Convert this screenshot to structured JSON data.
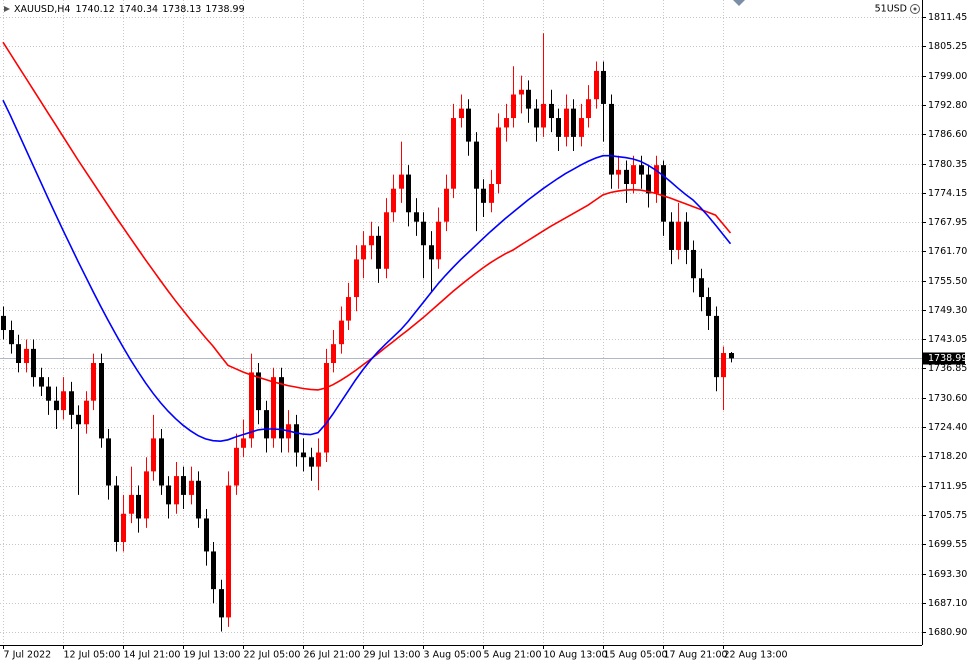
{
  "chart_data": {
    "type": "candlestick",
    "symbol": "XAUUSD,H4",
    "account_label": "51USD",
    "categories": [
      "7 Jul 2022",
      null,
      null,
      null,
      null,
      null,
      null,
      null,
      "12 Jul 05:00",
      null,
      null,
      null,
      null,
      null,
      null,
      null,
      "14 Jul 21:00",
      null,
      null,
      null,
      null,
      null,
      null,
      null,
      "19 Jul 13:00",
      null,
      null,
      null,
      null,
      null,
      null,
      null,
      "22 Jul 05:00",
      null,
      null,
      null,
      null,
      null,
      null,
      null,
      "26 Jul 21:00",
      null,
      null,
      null,
      null,
      null,
      null,
      null,
      "29 Jul 13:00",
      null,
      null,
      null,
      null,
      null,
      null,
      null,
      "3 Aug 05:00",
      null,
      null,
      null,
      null,
      null,
      null,
      null,
      "5 Aug 21:00",
      null,
      null,
      null,
      null,
      null,
      null,
      null,
      "10 Aug 13:00",
      null,
      null,
      null,
      null,
      null,
      null,
      null,
      "15 Aug 05:00",
      null,
      null,
      null,
      null,
      null,
      null,
      null,
      "17 Aug 21:00",
      null,
      null,
      null,
      null,
      null,
      null,
      null,
      "22 Aug 13:00",
      null
    ],
    "open": [
      1748,
      1745,
      1742,
      1738,
      1741,
      1735,
      1733,
      1730,
      1728,
      1732,
      1727,
      1725,
      1730,
      1738,
      1722,
      1712,
      1700,
      1706,
      1710,
      1705,
      1715,
      1722,
      1712,
      1708,
      1714,
      1710,
      1713,
      1705,
      1698,
      1690,
      1684,
      1712,
      1720,
      1722,
      1736,
      1728,
      1722,
      1735,
      1722,
      1725,
      1719,
      1718,
      1716,
      1719,
      1738,
      1742,
      1747,
      1752,
      1760,
      1763,
      1765,
      1758,
      1770,
      1775,
      1778,
      1770,
      1768,
      1763,
      1760,
      1768,
      1775,
      1790,
      1792,
      1785,
      1775,
      1772,
      1776,
      1788,
      1790,
      1795,
      1796,
      1792,
      1788,
      1793,
      1790,
      1786,
      1792,
      1786,
      1790,
      1794,
      1800,
      1793,
      1778,
      1779,
      1776,
      1780,
      1778,
      1774,
      1780,
      1768,
      1762,
      1768,
      1762,
      1756,
      1752,
      1748,
      1735,
      1740.12
    ],
    "high": [
      1750,
      1747,
      1744,
      1743,
      1743,
      1737,
      1735,
      1733,
      1735,
      1734,
      1729,
      1732,
      1740,
      1740,
      1724,
      1714,
      1710,
      1716,
      1712,
      1718,
      1727,
      1724,
      1714,
      1717,
      1716,
      1716,
      1715,
      1707,
      1700,
      1692,
      1715,
      1723,
      1726,
      1740,
      1738,
      1730,
      1737,
      1737,
      1728,
      1727,
      1722,
      1720,
      1722,
      1741,
      1745,
      1750,
      1755,
      1763,
      1766,
      1768,
      1767,
      1773,
      1778,
      1785,
      1780,
      1773,
      1770,
      1766,
      1771,
      1778,
      1793,
      1795,
      1794,
      1787,
      1777,
      1779,
      1791,
      1793,
      1801,
      1799,
      1798,
      1794,
      1808,
      1796,
      1792,
      1795,
      1794,
      1793,
      1797,
      1802,
      1802,
      1795,
      1782,
      1781,
      1782,
      1782,
      1780,
      1782,
      1781,
      1770,
      1772,
      1770,
      1764,
      1758,
      1754,
      1750,
      1741.5,
      1740.34
    ],
    "low": [
      1743,
      1740,
      1736,
      1736,
      1733,
      1731,
      1727,
      1724,
      1726,
      1724,
      1710,
      1723,
      1728,
      1720,
      1709,
      1698,
      1698,
      1704,
      1702,
      1703,
      1713,
      1710,
      1705,
      1706,
      1707,
      1708,
      1703,
      1695,
      1687,
      1681,
      1682,
      1710,
      1718,
      1720,
      1725,
      1719,
      1720,
      1719,
      1719,
      1716,
      1715,
      1713,
      1711,
      1717,
      1736,
      1740,
      1745,
      1749,
      1756,
      1760,
      1755,
      1756,
      1768,
      1772,
      1767,
      1765,
      1756,
      1753,
      1758,
      1766,
      1773,
      1788,
      1782,
      1766,
      1769,
      1770,
      1774,
      1785,
      1788,
      1791,
      1789,
      1785,
      1786,
      1787,
      1783,
      1784,
      1783,
      1784,
      1788,
      1792,
      1785,
      1775,
      1775,
      1772,
      1774,
      1775,
      1771,
      1772,
      1765,
      1759,
      1760,
      1759,
      1753,
      1749,
      1745,
      1732,
      1728,
      1738.13
    ],
    "close": [
      1745,
      1742,
      1738,
      1741,
      1735,
      1733,
      1730,
      1728,
      1732,
      1727,
      1725,
      1730,
      1738,
      1722,
      1712,
      1700,
      1706,
      1710,
      1705,
      1715,
      1722,
      1712,
      1708,
      1714,
      1710,
      1713,
      1705,
      1698,
      1690,
      1684,
      1712,
      1720,
      1722,
      1736,
      1728,
      1722,
      1735,
      1722,
      1725,
      1719,
      1718,
      1716,
      1719,
      1738,
      1742,
      1747,
      1752,
      1760,
      1763,
      1765,
      1758,
      1770,
      1775,
      1778,
      1770,
      1768,
      1763,
      1760,
      1768,
      1775,
      1790,
      1792,
      1785,
      1775,
      1772,
      1776,
      1788,
      1790,
      1795,
      1796,
      1792,
      1788,
      1793,
      1790,
      1786,
      1792,
      1786,
      1790,
      1794,
      1800,
      1793,
      1778,
      1779,
      1776,
      1780,
      1778,
      1774,
      1780,
      1768,
      1762,
      1768,
      1762,
      1756,
      1752,
      1748,
      1735,
      1740.12,
      1738.99
    ],
    "up_color": "#ff0000",
    "down_color": "#000000",
    "moving_averages": [
      {
        "color": "#ff0000",
        "values": [
          1806.1,
          1803.6,
          1801.1,
          1798.6,
          1796.1,
          1793.6,
          1791.1,
          1788.6,
          1786.1,
          1783.6,
          1781.1,
          1778.7,
          1776.3,
          1773.9,
          1771.5,
          1769.1,
          1766.8,
          1764.5,
          1762.2,
          1759.9,
          1757.7,
          1755.5,
          1753.3,
          1751.2,
          1749.2,
          1747.2,
          1745.3,
          1743.4,
          1741.6,
          1739.5,
          1737.5,
          1736.8,
          1736.1,
          1735.5,
          1735.0,
          1734.5,
          1734.0,
          1733.6,
          1733.2,
          1732.9,
          1732.6,
          1732.4,
          1732.3,
          1732.7,
          1733.4,
          1734.3,
          1735.3,
          1736.4,
          1737.6,
          1738.8,
          1740.0,
          1741.3,
          1742.5,
          1743.8,
          1745.0,
          1746.3,
          1747.6,
          1749.0,
          1750.4,
          1751.8,
          1753.2,
          1754.5,
          1755.8,
          1757.0,
          1758.2,
          1759.3,
          1760.3,
          1761.2,
          1762.0,
          1763.0,
          1764.0,
          1765.0,
          1766.0,
          1767.0,
          1767.9,
          1768.8,
          1769.7,
          1770.6,
          1771.5,
          1772.6,
          1773.7,
          1774.2,
          1774.5,
          1774.7,
          1774.8,
          1774.7,
          1774.4,
          1774.0,
          1773.5,
          1773.0,
          1772.4,
          1771.8,
          1771.2,
          1770.6,
          1770.0,
          1769.4,
          1767.5,
          1765.6
        ]
      },
      {
        "color": "#0000ff",
        "values": [
          1793.8,
          1790.5,
          1787.0,
          1783.5,
          1780.0,
          1776.5,
          1773.0,
          1769.6,
          1766.2,
          1762.9,
          1759.6,
          1756.4,
          1753.2,
          1750.1,
          1747.1,
          1744.2,
          1741.4,
          1738.7,
          1736.2,
          1733.8,
          1731.6,
          1729.6,
          1727.8,
          1726.2,
          1724.8,
          1723.6,
          1722.6,
          1721.9,
          1721.5,
          1721.4,
          1721.7,
          1722.3,
          1722.8,
          1723.3,
          1723.8,
          1724.0,
          1724.0,
          1723.9,
          1723.6,
          1723.2,
          1722.9,
          1722.8,
          1723.2,
          1725.0,
          1727.2,
          1729.6,
          1732.0,
          1734.4,
          1736.6,
          1738.6,
          1740.4,
          1742.0,
          1743.5,
          1745.0,
          1746.8,
          1748.8,
          1750.8,
          1752.8,
          1754.8,
          1756.6,
          1758.3,
          1759.9,
          1761.4,
          1762.9,
          1764.4,
          1765.9,
          1767.3,
          1768.7,
          1770.0,
          1771.3,
          1772.6,
          1773.8,
          1775.0,
          1776.1,
          1777.2,
          1778.2,
          1779.1,
          1780.0,
          1780.8,
          1781.5,
          1782.0,
          1782.0,
          1781.8,
          1781.6,
          1781.3,
          1780.8,
          1780.0,
          1779.0,
          1777.8,
          1776.5,
          1775.1,
          1773.8,
          1772.6,
          1771.0,
          1769.2,
          1767.3,
          1765.3,
          1763.3
        ]
      }
    ],
    "ylim": [
      1678.14,
      1815.06
    ],
    "yticks": [
      1811.45,
      1805.25,
      {
        "value": 1799,
        "label": "1799.00"
      },
      {
        "value": 1792.8,
        "label": "1792.80"
      },
      {
        "value": 1786.6,
        "label": "1786.60"
      },
      1780.35,
      1774.15,
      1767.95,
      {
        "value": 1761.7,
        "label": "1761.70"
      },
      {
        "value": 1755.5,
        "label": "1755.50"
      },
      {
        "value": 1749.3,
        "label": "1749.30"
      },
      1743.05,
      1736.85,
      {
        "value": 1730.6,
        "label": "1730.60"
      },
      {
        "value": 1724.4,
        "label": "1724.40"
      },
      {
        "value": 1718.2,
        "label": "1718.20"
      },
      1711.95,
      1705.75,
      1699.55,
      {
        "value": 1693.3,
        "label": "1693.30"
      },
      {
        "value": 1687.1,
        "label": "1687.10"
      },
      {
        "value": 1680.9,
        "label": "1680.90"
      }
    ],
    "grid": true
  }
}
